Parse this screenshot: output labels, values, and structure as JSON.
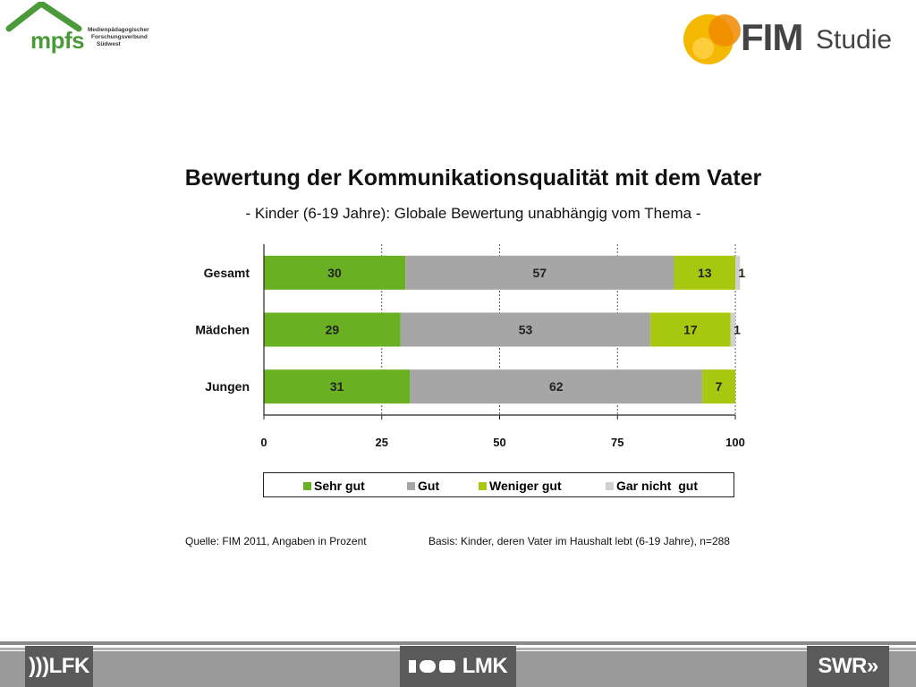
{
  "logos": {
    "mpfs": {
      "word": "mpfs",
      "sub": [
        "Medienpädagogischer",
        "Forschungsverbund",
        "Südwest"
      ]
    },
    "fim": {
      "word": "FIM",
      "studie": "Studie"
    }
  },
  "partners": {
    "lfk": ")))LFK",
    "lmk": "LMK",
    "swr": "SWR»"
  },
  "footnotes": {
    "source": "Quelle: FIM 2011,  Angaben in Prozent",
    "basis": "Basis: Kinder, deren Vater im Haushalt lebt (6-19 Jahre), n=288"
  },
  "colors": {
    "sehr_gut": "#6ab023",
    "gut": "#a6a6a6",
    "weniger_gut": "#a8c80f",
    "gar_nicht_gut": "#d0d0d0",
    "logo_green": "#4a9a3a",
    "logo_yellow": "#f5b800"
  },
  "chart_data": {
    "type": "bar",
    "orientation": "horizontal",
    "stacked": true,
    "title": "Bewertung der Kommunikationsqualität mit dem Vater",
    "subtitle": "- Kinder (6-19 Jahre): Globale Bewertung unabhängig vom Thema -",
    "categories": [
      "Gesamt",
      "Mädchen",
      "Jungen"
    ],
    "series": [
      {
        "name": "Sehr gut",
        "values": [
          30,
          29,
          31
        ]
      },
      {
        "name": "Gut",
        "values": [
          57,
          53,
          62
        ]
      },
      {
        "name": "Weniger gut",
        "values": [
          13,
          17,
          7
        ]
      },
      {
        "name": "Gar nicht  gut",
        "values": [
          1,
          1,
          0
        ]
      }
    ],
    "xlim": [
      0,
      100
    ],
    "xticks": [
      "0",
      "25",
      "50",
      "75",
      "100"
    ],
    "grid": true,
    "legend_position": "bottom"
  }
}
